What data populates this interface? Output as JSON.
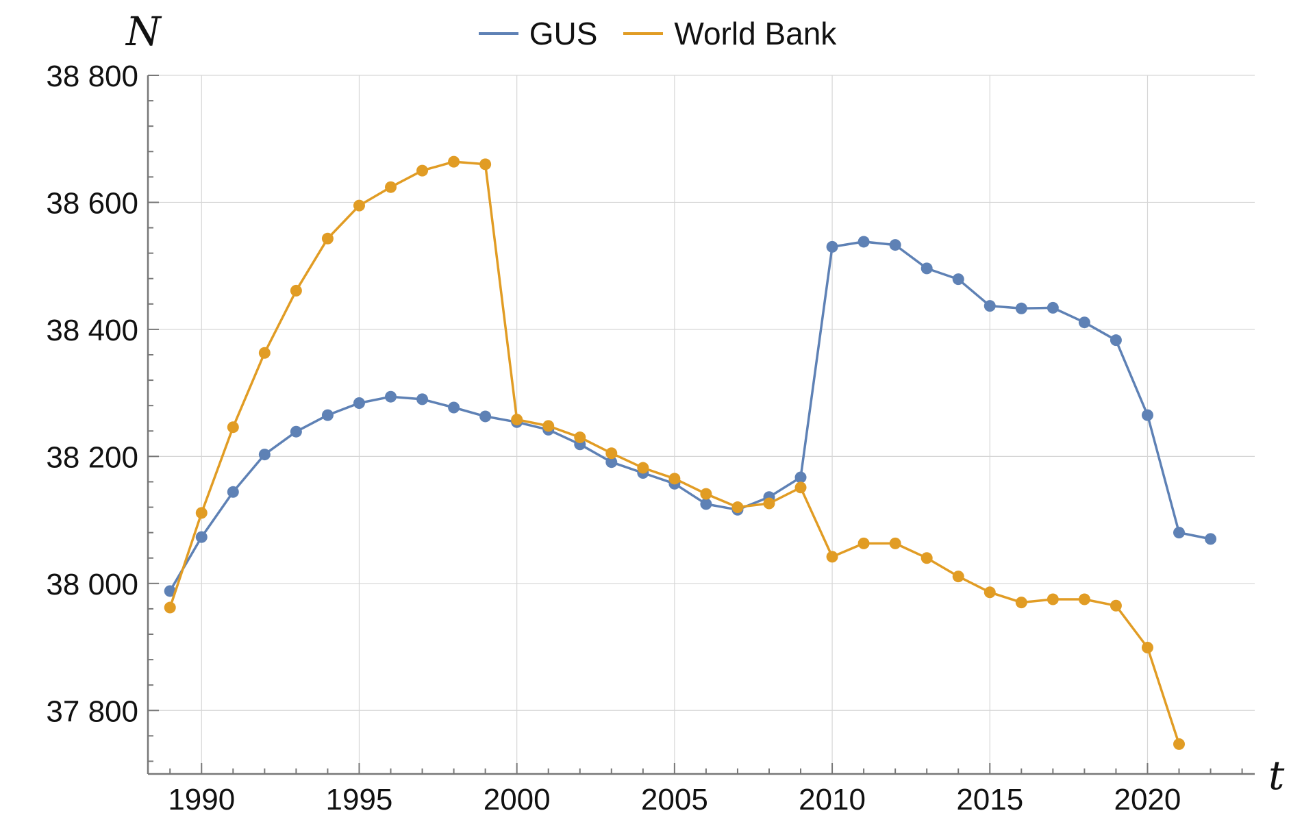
{
  "chart_data": {
    "type": "line",
    "xlabel": "t",
    "ylabel": "N",
    "xlim": [
      1988.3,
      2023.4
    ],
    "ylim": [
      37700,
      38800
    ],
    "x_ticks": [
      1990,
      1995,
      2000,
      2005,
      2010,
      2015,
      2020
    ],
    "x_tick_labels": [
      "1990",
      "1995",
      "2000",
      "2005",
      "2010",
      "2015",
      "2020"
    ],
    "y_ticks": [
      37800,
      38000,
      38200,
      38400,
      38600,
      38800
    ],
    "y_tick_labels": [
      "37 800",
      "38 000",
      "38 200",
      "38 400",
      "38 600",
      "38 800"
    ],
    "grid": true,
    "legend_position": "top-center",
    "series": [
      {
        "name": "GUS",
        "color": "#5e81b5",
        "x": [
          1989,
          1990,
          1991,
          1992,
          1993,
          1994,
          1995,
          1996,
          1997,
          1998,
          1999,
          2000,
          2001,
          2002,
          2003,
          2004,
          2005,
          2006,
          2007,
          2008,
          2009,
          2010,
          2011,
          2012,
          2013,
          2014,
          2015,
          2016,
          2017,
          2018,
          2019,
          2020,
          2021,
          2022
        ],
        "y": [
          37988,
          38073,
          38144,
          38203,
          38239,
          38265,
          38284,
          38294,
          38290,
          38277,
          38263,
          38254,
          38242,
          38219,
          38191,
          38174,
          38157,
          38125,
          38116,
          38136,
          38167,
          38530,
          38538,
          38533,
          38496,
          38479,
          38437,
          38433,
          38434,
          38411,
          38383,
          38265,
          38080,
          38070
        ]
      },
      {
        "name": "World Bank",
        "color": "#e19c24",
        "x": [
          1989,
          1990,
          1991,
          1992,
          1993,
          1994,
          1995,
          1996,
          1997,
          1998,
          1999,
          2000,
          2001,
          2002,
          2003,
          2004,
          2005,
          2006,
          2007,
          2008,
          2009,
          2010,
          2011,
          2012,
          2013,
          2014,
          2015,
          2016,
          2017,
          2018,
          2019,
          2020,
          2021
        ],
        "y": [
          37962,
          38111,
          38246,
          38363,
          38461,
          38543,
          38595,
          38624,
          38650,
          38664,
          38660,
          38258,
          38248,
          38230,
          38205,
          38182,
          38165,
          38141,
          38120,
          38126,
          38151,
          38042,
          38063,
          38063,
          38040,
          38011,
          37986,
          37970,
          37975,
          37975,
          37965,
          37899,
          37747
        ]
      }
    ]
  }
}
